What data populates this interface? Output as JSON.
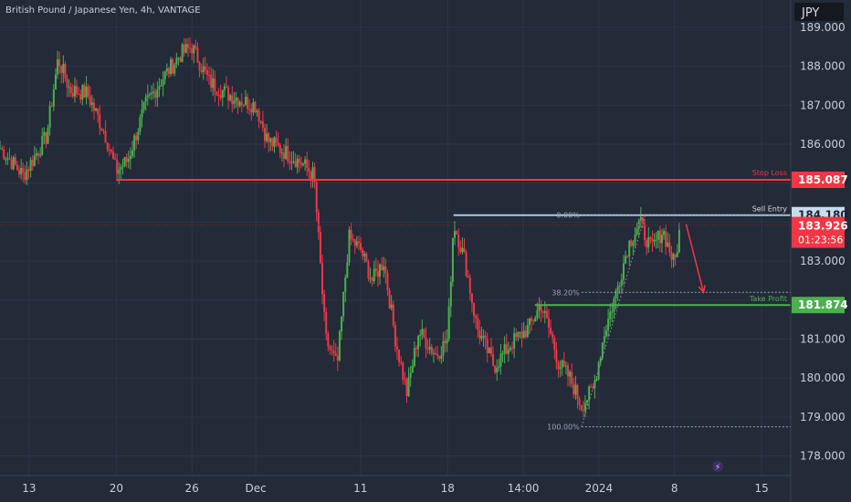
{
  "header": {
    "symbol_title": "British Pound / Japanese Yen, 4h, VANTAGE",
    "currency": "JPY"
  },
  "chart_data": {
    "type": "candlestick",
    "title": "British Pound / Japanese Yen, 4h, VANTAGE",
    "ylim": [
      177.5,
      189.7
    ],
    "y_ticks": [
      178,
      179,
      180,
      181,
      182,
      183,
      184,
      185,
      186,
      187,
      188,
      189
    ],
    "y_tick_labels": [
      "178.000",
      "179.000",
      "180.000",
      "181.000",
      "",
      "183.000",
      "",
      "",
      "186.000",
      "187.000",
      "188.000",
      "189.000"
    ],
    "x_ticks": [
      {
        "label": "13",
        "x": 5
      },
      {
        "label": "20",
        "x": 20
      },
      {
        "label": "26",
        "x": 33
      },
      {
        "label": "Dec",
        "x": 44
      },
      {
        "label": "11",
        "x": 62
      },
      {
        "label": "18",
        "x": 77
      },
      {
        "label": "14:00",
        "x": 90
      },
      {
        "label": "2024",
        "x": 103
      },
      {
        "label": "8",
        "x": 116
      },
      {
        "label": "15",
        "x": 131
      }
    ],
    "x_range": [
      0,
      136
    ],
    "ohlc_path": [
      [
        0,
        185.9
      ],
      [
        4,
        185.2
      ],
      [
        8,
        186.2
      ],
      [
        10,
        188.2
      ],
      [
        12,
        187.4
      ],
      [
        15,
        187.3
      ],
      [
        18,
        186.3
      ],
      [
        20,
        185.3
      ],
      [
        22,
        185.6
      ],
      [
        25,
        187.0
      ],
      [
        28,
        187.7
      ],
      [
        31,
        188.3
      ],
      [
        33,
        188.5
      ],
      [
        36,
        187.6
      ],
      [
        39,
        187.3
      ],
      [
        42,
        187.1
      ],
      [
        44,
        187.0
      ],
      [
        46,
        186.1
      ],
      [
        49,
        185.8
      ],
      [
        52,
        185.5
      ],
      [
        54,
        185.2
      ],
      [
        56,
        181.0
      ],
      [
        58,
        180.3
      ],
      [
        60,
        183.6
      ],
      [
        62,
        183.3
      ],
      [
        64,
        182.5
      ],
      [
        66,
        183.0
      ],
      [
        68,
        181.0
      ],
      [
        70,
        179.6
      ],
      [
        72,
        181.2
      ],
      [
        75,
        180.6
      ],
      [
        77,
        181.0
      ],
      [
        78,
        184.0
      ],
      [
        80,
        183.0
      ],
      [
        82,
        181.3
      ],
      [
        85,
        180.3
      ],
      [
        88,
        180.9
      ],
      [
        91,
        181.3
      ],
      [
        93,
        181.9
      ],
      [
        95,
        181.0
      ],
      [
        96,
        180.4
      ],
      [
        98,
        180.0
      ],
      [
        100,
        179.3
      ],
      [
        102,
        179.7
      ],
      [
        104,
        181.2
      ],
      [
        106,
        182.2
      ],
      [
        108,
        183.4
      ],
      [
        110,
        184.0
      ],
      [
        112,
        183.3
      ],
      [
        114,
        183.8
      ],
      [
        116,
        182.9
      ],
      [
        117,
        183.9
      ]
    ],
    "levels": [
      {
        "name": "Stop Loss",
        "value": 185.087,
        "label": "185.087",
        "color": "#f23645"
      },
      {
        "name": "Sell Entry",
        "value": 184.18,
        "label": "184.180",
        "color": "#a9c7e8"
      },
      {
        "name": "Take Profit",
        "value": 181.874,
        "label": "181.874",
        "color": "#4caf50"
      }
    ],
    "current_price": {
      "value": 183.926,
      "label": "183.926",
      "countdown": "01:23:56",
      "color": "#f23645"
    },
    "fibonacci": [
      {
        "label": "0.00%",
        "value": 184.18
      },
      {
        "label": "38.20%",
        "value": 182.2
      },
      {
        "label": "100.00%",
        "value": 178.75
      }
    ],
    "projection_arrow": {
      "from": [
        118,
        183.95
      ],
      "to": [
        121,
        182.2
      ],
      "color": "#f23645"
    },
    "colors": {
      "background": "#232a38",
      "up": "#4caf50",
      "down": "#f23645",
      "grid": "#2e3547"
    }
  }
}
